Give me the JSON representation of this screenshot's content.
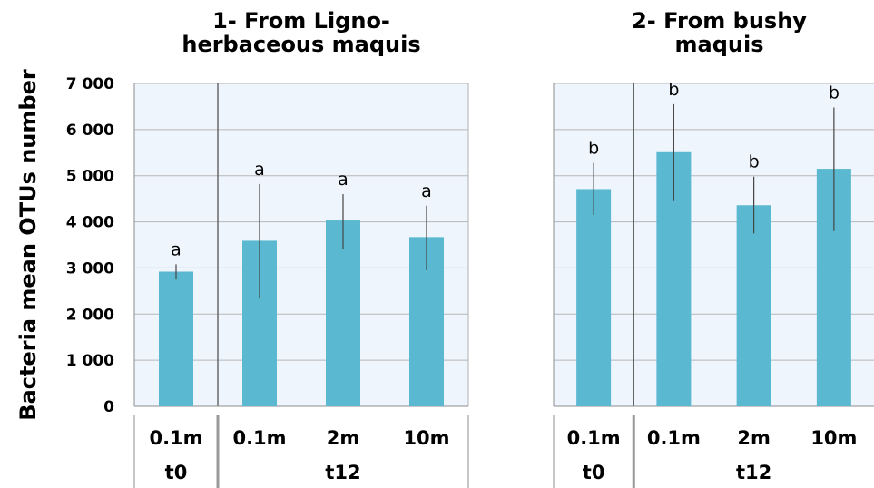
{
  "chart_data": {
    "type": "bar",
    "ylabel": "Bacteria mean OTUs number",
    "ylim": [
      0,
      7000
    ],
    "yticks": [
      "0",
      "1 000",
      "2 000",
      "3 000",
      "4 000",
      "5 000",
      "6 000",
      "7 000"
    ],
    "grid": true,
    "panels": [
      {
        "title_lines": [
          "1- From Ligno-",
          "herbaceous maquis"
        ],
        "categories": [
          "0.1m",
          "0.1m",
          "2m",
          "10m"
        ],
        "groups": [
          {
            "label": "t0",
            "count": 1
          },
          {
            "label": "t12",
            "count": 3
          }
        ],
        "values": [
          2920,
          3590,
          4030,
          3670
        ],
        "error_low": [
          2750,
          2350,
          3400,
          2950
        ],
        "error_high": [
          3080,
          4820,
          4600,
          4350
        ],
        "significance": [
          "a",
          "a",
          "a",
          "a"
        ]
      },
      {
        "title_lines": [
          "2- From bushy",
          "maquis"
        ],
        "categories": [
          "0.1m",
          "0.1m",
          "2m",
          "10m"
        ],
        "groups": [
          {
            "label": "t0",
            "count": 1
          },
          {
            "label": "t12",
            "count": 3
          }
        ],
        "values": [
          4710,
          5510,
          4360,
          5150
        ],
        "error_low": [
          4150,
          4450,
          3750,
          3800
        ],
        "error_high": [
          5280,
          6550,
          4980,
          6480
        ],
        "significance": [
          "b",
          "b",
          "b",
          "b"
        ]
      }
    ]
  },
  "colors": {
    "bar": "#5bb8d1",
    "plot_background": "#eef5fc",
    "gridline": "#b7b7b7",
    "error_bar": "#444444",
    "text": "#000000"
  }
}
